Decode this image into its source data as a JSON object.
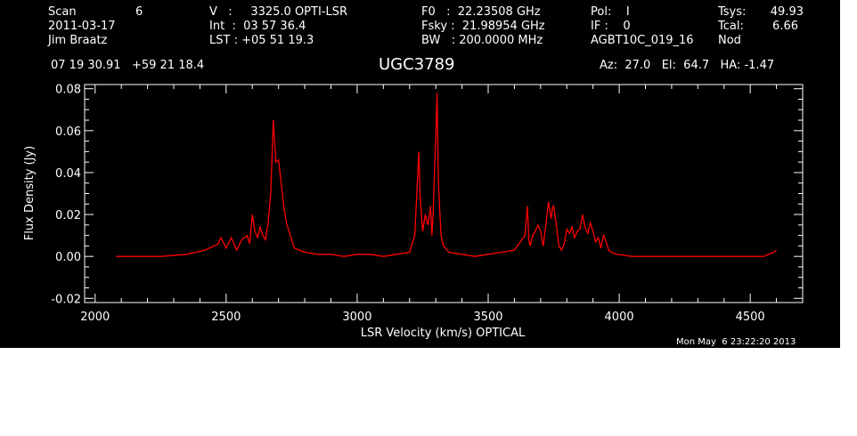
{
  "header": {
    "col1": {
      "scan_label": "Scan",
      "scan_value": "6",
      "date": "2011-03-17",
      "observer": "Jim Braatz"
    },
    "col2": {
      "v_line": "V   :     3325.0 OPTI-LSR",
      "int_line": "Int  :  03 57 36.4",
      "lst_line": "LST : +05 51 19.3"
    },
    "col3": {
      "f0_line": "F0   :  22.23508 GHz",
      "fsky_line": "Fsky :  21.98954 GHz",
      "bw_line": "BW   : 200.0000 MHz"
    },
    "col4": {
      "pol_line": "Pol:    I",
      "if_line": "IF :    0",
      "proj": "AGBT10C_019_16"
    },
    "col5": {
      "tsys_label": "Tsys:",
      "tsys_value": "49.93",
      "tcal_label": "Tcal:",
      "tcal_value": "6.66",
      "mode": "Nod"
    },
    "coords": "07 19 30.91   +59 21 18.4",
    "source": "UGC3789",
    "pointing": "Az:  27.0   El:  64.7   HA: -1.47",
    "timestamp": "Mon May  6 23:22:20 2013"
  },
  "colors": {
    "background": "#000000",
    "axes": "#ffffff",
    "spectrum": "#ff0000"
  },
  "chart_data": {
    "type": "line",
    "title": "UGC3789",
    "xlabel": "LSR Velocity (km/s) OPTICAL",
    "ylabel": "Flux Density (Jy)",
    "xlim": [
      1960,
      4700
    ],
    "ylim": [
      -0.022,
      0.082
    ],
    "xticks": [
      2000,
      2500,
      3000,
      3500,
      4000,
      4500
    ],
    "xtick_labels": [
      "2000",
      "2500",
      "3000",
      "3500",
      "4000",
      "4500"
    ],
    "yticks": [
      -0.02,
      0.0,
      0.02,
      0.04,
      0.06,
      0.08
    ],
    "ytick_labels": [
      "-0.02",
      "0.00",
      "0.02",
      "0.04",
      "0.06",
      "0.08"
    ],
    "grid": false,
    "series": [
      {
        "x": [
          2080,
          2150,
          2250,
          2350,
          2420,
          2470,
          2480,
          2500,
          2520,
          2540,
          2560,
          2580,
          2590,
          2600,
          2610,
          2620,
          2630,
          2640,
          2650,
          2660,
          2670,
          2680,
          2690,
          2700,
          2710,
          2720,
          2730,
          2740,
          2750,
          2760,
          2780,
          2800,
          2850,
          2900,
          2950,
          3000,
          3050,
          3100,
          3150,
          3200,
          3220,
          3235,
          3240,
          3245,
          3250,
          3260,
          3270,
          3280,
          3285,
          3290,
          3295,
          3300,
          3305,
          3310,
          3315,
          3320,
          3330,
          3350,
          3400,
          3450,
          3500,
          3550,
          3600,
          3640,
          3650,
          3655,
          3660,
          3670,
          3680,
          3690,
          3700,
          3710,
          3720,
          3730,
          3740,
          3745,
          3750,
          3760,
          3770,
          3780,
          3790,
          3800,
          3810,
          3820,
          3830,
          3840,
          3850,
          3860,
          3870,
          3880,
          3890,
          3900,
          3910,
          3920,
          3930,
          3940,
          3950,
          3960,
          3970,
          3990,
          4050,
          4100,
          4200,
          4300,
          4400,
          4500,
          4550,
          4590,
          4600
        ],
        "y": [
          0.0,
          0.0,
          0.0,
          0.001,
          0.003,
          0.006,
          0.009,
          0.004,
          0.009,
          0.003,
          0.008,
          0.01,
          0.006,
          0.02,
          0.012,
          0.009,
          0.014,
          0.01,
          0.008,
          0.016,
          0.03,
          0.065,
          0.045,
          0.046,
          0.035,
          0.024,
          0.016,
          0.012,
          0.008,
          0.004,
          0.003,
          0.002,
          0.001,
          0.001,
          0.0,
          0.001,
          0.001,
          0.0,
          0.001,
          0.002,
          0.01,
          0.05,
          0.03,
          0.02,
          0.012,
          0.02,
          0.015,
          0.024,
          0.01,
          0.02,
          0.04,
          0.058,
          0.078,
          0.035,
          0.022,
          0.01,
          0.005,
          0.002,
          0.001,
          0.0,
          0.001,
          0.002,
          0.003,
          0.01,
          0.024,
          0.008,
          0.005,
          0.01,
          0.012,
          0.015,
          0.012,
          0.005,
          0.015,
          0.026,
          0.018,
          0.023,
          0.024,
          0.015,
          0.005,
          0.003,
          0.006,
          0.013,
          0.011,
          0.014,
          0.009,
          0.012,
          0.013,
          0.02,
          0.014,
          0.011,
          0.016,
          0.012,
          0.007,
          0.009,
          0.004,
          0.01,
          0.007,
          0.003,
          0.002,
          0.001,
          0.0,
          0.0,
          0.0,
          0.0,
          0.0,
          0.0,
          0.0,
          0.002,
          0.003
        ]
      }
    ]
  }
}
